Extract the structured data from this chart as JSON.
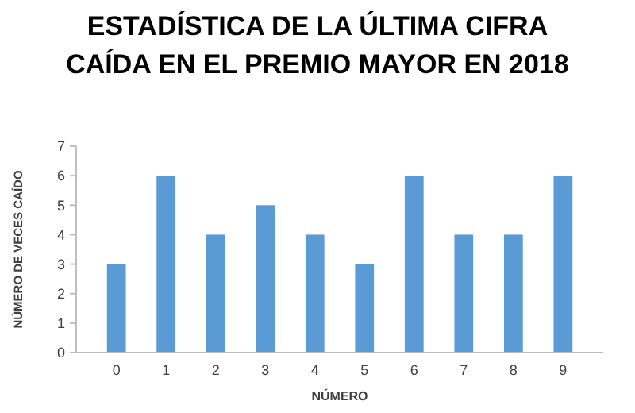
{
  "chart_data": {
    "type": "bar",
    "title": "ESTADÍSTICA DE LA ÚLTIMA CIFRA CAÍDA EN EL PREMIO MAYOR EN 2018",
    "xlabel": "NÚMERO",
    "ylabel": "NÚMERO DE VECES CAÍDO",
    "categories": [
      "0",
      "1",
      "2",
      "3",
      "4",
      "5",
      "6",
      "7",
      "8",
      "9"
    ],
    "values": [
      3,
      6,
      4,
      5,
      4,
      3,
      6,
      4,
      4,
      6
    ],
    "color": "#5b9bd5",
    "ylim": [
      0,
      7
    ],
    "yticks": [
      0,
      1,
      2,
      3,
      4,
      5,
      6,
      7
    ],
    "grid": false
  }
}
